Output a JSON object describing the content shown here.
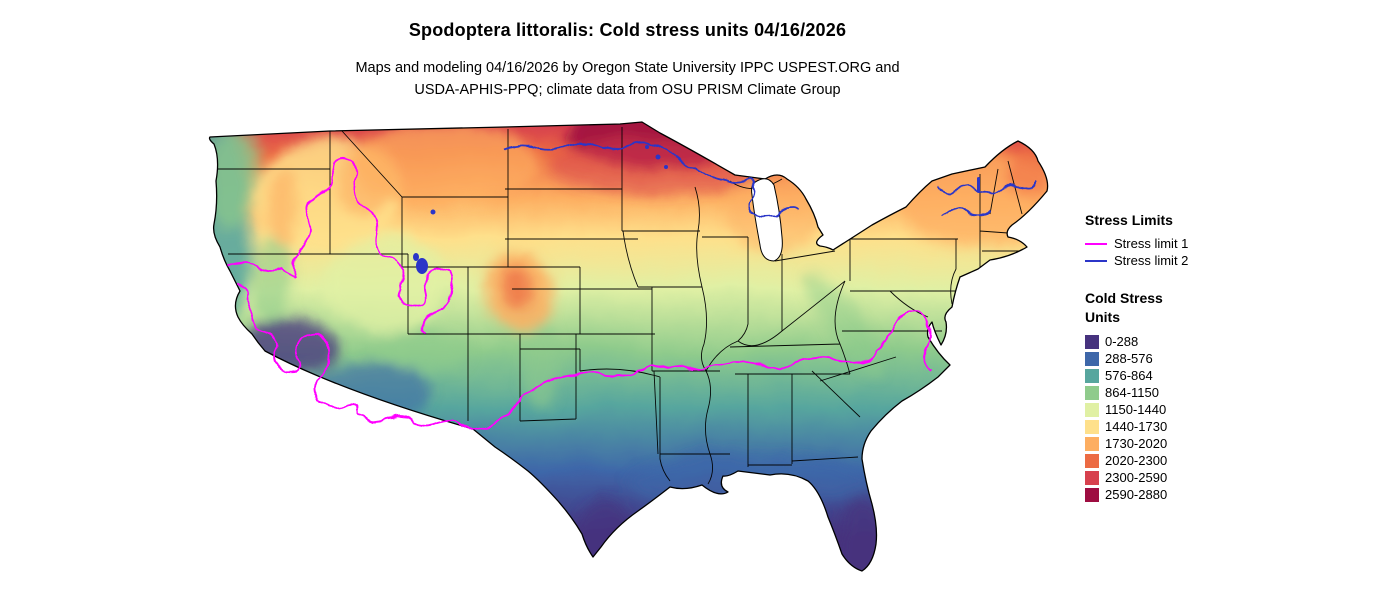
{
  "title": "Spodoptera littoralis: Cold stress units 04/16/2026",
  "subtitle": {
    "line1": "Maps and modeling 04/16/2026 by Oregon State University IPPC USPEST.ORG and",
    "line2": "USDA-APHIS-PPQ; climate data from OSU PRISM Climate Group"
  },
  "legend": {
    "stress_limits": {
      "heading": "Stress Limits",
      "items": [
        {
          "label": "Stress limit 1",
          "color": "#ff00ff"
        },
        {
          "label": "Stress limit 2",
          "color": "#2b35c8"
        }
      ]
    },
    "cold_stress_units": {
      "heading_lines": [
        "Cold Stress",
        "Units"
      ],
      "classes": [
        {
          "label": "0-288",
          "color": "#46327e"
        },
        {
          "label": "288-576",
          "color": "#3e67a9"
        },
        {
          "label": "576-864",
          "color": "#57a69e"
        },
        {
          "label": "864-1150",
          "color": "#8fcb8c"
        },
        {
          "label": "1150-1440",
          "color": "#e0f0a4"
        },
        {
          "label": "1440-1730",
          "color": "#fee08b"
        },
        {
          "label": "1730-2020",
          "color": "#fdae61"
        },
        {
          "label": "2020-2300",
          "color": "#ec6b43"
        },
        {
          "label": "2300-2590",
          "color": "#d7414e"
        },
        {
          "label": "2590-2880",
          "color": "#9e0d41"
        }
      ]
    }
  },
  "map": {
    "name": "Continental United States cold stress raster map",
    "water_color": "#2b35c8"
  }
}
